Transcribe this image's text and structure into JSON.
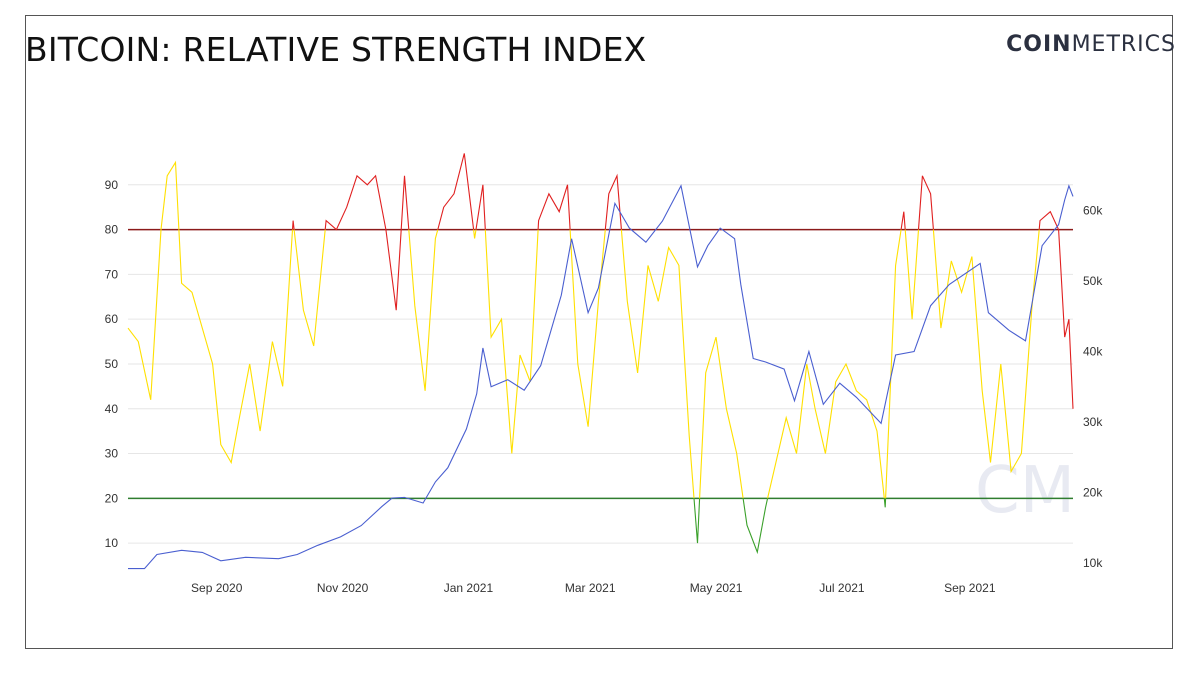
{
  "header": {
    "title": "BITCOIN: RELATIVE STRENGTH INDEX",
    "brand_bold": "COIN",
    "brand_light": "METRICS"
  },
  "watermark": "CM",
  "colors": {
    "overbought": "#e02020",
    "neutral": "#ffe000",
    "oversold": "#3aa02a",
    "price": "#4a5fd0",
    "line80": "#8b1a1a",
    "line20": "#2f7d2f",
    "grid": "#e6e6e6"
  },
  "chart_data": {
    "type": "line",
    "title": "BITCOIN: RELATIVE STRENGTH INDEX",
    "x_ticks": [
      "Sep 2020",
      "Nov 2020",
      "Jan 2021",
      "Mar 2021",
      "May 2021",
      "Jul 2021",
      "Sep 2021"
    ],
    "x_tick_dates": [
      "2020-09-01",
      "2020-11-01",
      "2021-01-01",
      "2021-03-01",
      "2021-05-01",
      "2021-07-01",
      "2021-09-01"
    ],
    "x_range": [
      "2020-07-20",
      "2021-10-21"
    ],
    "y_left_ticks": [
      10,
      20,
      30,
      40,
      50,
      60,
      70,
      80,
      90
    ],
    "y_left_range": [
      4,
      100
    ],
    "y_right_ticks": [
      "10k",
      "20k",
      "30k",
      "40k",
      "50k",
      "60k"
    ],
    "y_right_tick_values": [
      10000,
      20000,
      30000,
      40000,
      50000,
      60000
    ],
    "y_right_range": [
      9000,
      70000
    ],
    "thresholds": [
      80,
      20
    ],
    "grid": true,
    "series": [
      {
        "axis": "left",
        "points": [
          [
            "2020-07-20",
            58
          ],
          [
            "2020-07-25",
            55
          ],
          [
            "2020-07-31",
            42
          ],
          [
            "2020-08-05",
            80
          ],
          [
            "2020-08-08",
            92
          ],
          [
            "2020-08-12",
            95
          ],
          [
            "2020-08-15",
            68
          ],
          [
            "2020-08-20",
            66
          ],
          [
            "2020-08-25",
            58
          ],
          [
            "2020-08-30",
            50
          ],
          [
            "2020-09-03",
            32
          ],
          [
            "2020-09-08",
            28
          ],
          [
            "2020-09-12",
            38
          ],
          [
            "2020-09-17",
            50
          ],
          [
            "2020-09-22",
            35
          ],
          [
            "2020-09-28",
            55
          ],
          [
            "2020-10-03",
            45
          ],
          [
            "2020-10-08",
            82
          ],
          [
            "2020-10-13",
            62
          ],
          [
            "2020-10-18",
            54
          ],
          [
            "2020-10-24",
            82
          ],
          [
            "2020-10-29",
            80
          ],
          [
            "2020-11-03",
            85
          ],
          [
            "2020-11-08",
            92
          ],
          [
            "2020-11-13",
            90
          ],
          [
            "2020-11-17",
            92
          ],
          [
            "2020-11-22",
            80
          ],
          [
            "2020-11-27",
            62
          ],
          [
            "2020-12-01",
            92
          ],
          [
            "2020-12-06",
            63
          ],
          [
            "2020-12-11",
            44
          ],
          [
            "2020-12-16",
            78
          ],
          [
            "2020-12-20",
            85
          ],
          [
            "2020-12-25",
            88
          ],
          [
            "2020-12-30",
            97
          ],
          [
            "2021-01-04",
            78
          ],
          [
            "2021-01-08",
            90
          ],
          [
            "2021-01-12",
            56
          ],
          [
            "2021-01-17",
            60
          ],
          [
            "2021-01-22",
            30
          ],
          [
            "2021-01-26",
            52
          ],
          [
            "2021-01-31",
            46
          ],
          [
            "2021-02-04",
            82
          ],
          [
            "2021-02-09",
            88
          ],
          [
            "2021-02-14",
            84
          ],
          [
            "2021-02-18",
            90
          ],
          [
            "2021-02-23",
            50
          ],
          [
            "2021-02-28",
            36
          ],
          [
            "2021-03-05",
            64
          ],
          [
            "2021-03-10",
            88
          ],
          [
            "2021-03-14",
            92
          ],
          [
            "2021-03-19",
            64
          ],
          [
            "2021-03-24",
            48
          ],
          [
            "2021-03-29",
            72
          ],
          [
            "2021-04-03",
            64
          ],
          [
            "2021-04-08",
            76
          ],
          [
            "2021-04-13",
            72
          ],
          [
            "2021-04-18",
            34
          ],
          [
            "2021-04-22",
            10
          ],
          [
            "2021-04-26",
            48
          ],
          [
            "2021-05-01",
            56
          ],
          [
            "2021-05-06",
            40
          ],
          [
            "2021-05-11",
            30
          ],
          [
            "2021-05-16",
            14
          ],
          [
            "2021-05-21",
            8
          ],
          [
            "2021-05-25",
            18
          ],
          [
            "2021-05-30",
            28
          ],
          [
            "2021-06-04",
            38
          ],
          [
            "2021-06-09",
            30
          ],
          [
            "2021-06-14",
            50
          ],
          [
            "2021-06-18",
            40
          ],
          [
            "2021-06-23",
            30
          ],
          [
            "2021-06-28",
            46
          ],
          [
            "2021-07-03",
            50
          ],
          [
            "2021-07-08",
            44
          ],
          [
            "2021-07-13",
            42
          ],
          [
            "2021-07-18",
            35
          ],
          [
            "2021-07-22",
            18
          ],
          [
            "2021-07-27",
            72
          ],
          [
            "2021-07-31",
            84
          ],
          [
            "2021-08-04",
            60
          ],
          [
            "2021-08-09",
            92
          ],
          [
            "2021-08-13",
            88
          ],
          [
            "2021-08-18",
            58
          ],
          [
            "2021-08-23",
            73
          ],
          [
            "2021-08-28",
            66
          ],
          [
            "2021-09-02",
            74
          ],
          [
            "2021-09-07",
            44
          ],
          [
            "2021-09-11",
            28
          ],
          [
            "2021-09-16",
            50
          ],
          [
            "2021-09-21",
            26
          ],
          [
            "2021-09-26",
            30
          ],
          [
            "2021-10-01",
            62
          ],
          [
            "2021-10-05",
            82
          ],
          [
            "2021-10-10",
            84
          ],
          [
            "2021-10-14",
            80
          ],
          [
            "2021-10-17",
            56
          ],
          [
            "2021-10-19",
            60
          ],
          [
            "2021-10-21",
            40
          ]
        ]
      },
      {
        "axis": "right",
        "points": [
          [
            "2020-07-20",
            9200
          ],
          [
            "2020-07-28",
            9200
          ],
          [
            "2020-08-03",
            11200
          ],
          [
            "2020-08-15",
            11800
          ],
          [
            "2020-08-25",
            11500
          ],
          [
            "2020-09-03",
            10300
          ],
          [
            "2020-09-15",
            10800
          ],
          [
            "2020-10-01",
            10600
          ],
          [
            "2020-10-10",
            11200
          ],
          [
            "2020-10-20",
            12500
          ],
          [
            "2020-10-31",
            13700
          ],
          [
            "2020-11-10",
            15300
          ],
          [
            "2020-11-20",
            18000
          ],
          [
            "2020-11-25",
            19200
          ],
          [
            "2020-12-01",
            19300
          ],
          [
            "2020-12-10",
            18500
          ],
          [
            "2020-12-16",
            21500
          ],
          [
            "2020-12-22",
            23500
          ],
          [
            "2020-12-31",
            29000
          ],
          [
            "2021-01-05",
            34000
          ],
          [
            "2021-01-08",
            40500
          ],
          [
            "2021-01-12",
            35000
          ],
          [
            "2021-01-20",
            36000
          ],
          [
            "2021-01-28",
            34500
          ],
          [
            "2021-02-05",
            38000
          ],
          [
            "2021-02-15",
            48000
          ],
          [
            "2021-02-20",
            56000
          ],
          [
            "2021-02-28",
            45500
          ],
          [
            "2021-03-05",
            49000
          ],
          [
            "2021-03-13",
            61000
          ],
          [
            "2021-03-20",
            57500
          ],
          [
            "2021-03-28",
            55500
          ],
          [
            "2021-04-05",
            58500
          ],
          [
            "2021-04-14",
            63500
          ],
          [
            "2021-04-22",
            52000
          ],
          [
            "2021-04-27",
            55000
          ],
          [
            "2021-05-03",
            57500
          ],
          [
            "2021-05-10",
            56000
          ],
          [
            "2021-05-13",
            49500
          ],
          [
            "2021-05-19",
            39000
          ],
          [
            "2021-05-25",
            38500
          ],
          [
            "2021-06-03",
            37500
          ],
          [
            "2021-06-08",
            33000
          ],
          [
            "2021-06-15",
            40000
          ],
          [
            "2021-06-22",
            32500
          ],
          [
            "2021-06-30",
            35500
          ],
          [
            "2021-07-08",
            33500
          ],
          [
            "2021-07-20",
            29800
          ],
          [
            "2021-07-27",
            39500
          ],
          [
            "2021-08-05",
            40000
          ],
          [
            "2021-08-13",
            46500
          ],
          [
            "2021-08-22",
            49500
          ],
          [
            "2021-09-06",
            52500
          ],
          [
            "2021-09-10",
            45500
          ],
          [
            "2021-09-20",
            43000
          ],
          [
            "2021-09-28",
            41500
          ],
          [
            "2021-10-06",
            55000
          ],
          [
            "2021-10-14",
            58000
          ],
          [
            "2021-10-17",
            61500
          ],
          [
            "2021-10-19",
            63500
          ],
          [
            "2021-10-21",
            62000
          ]
        ]
      }
    ]
  }
}
